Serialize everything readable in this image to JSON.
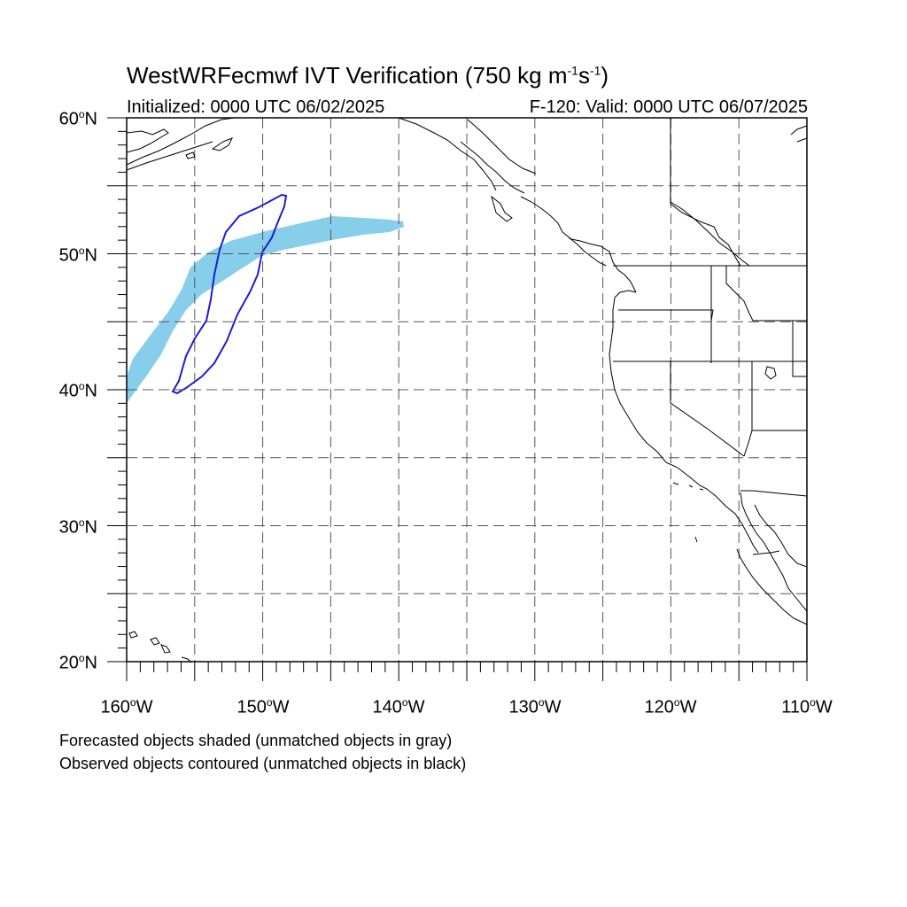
{
  "title": {
    "main": "WestWRFecmwf IVT Verification (750 kg m",
    "exp1": "-1",
    "mid": "s",
    "exp2": "-1",
    "close": ")"
  },
  "subtitle_left": "Initialized: 0000 UTC 06/02/2025",
  "subtitle_right": "F-120: Valid: 0000 UTC 06/07/2025",
  "degree_symbol": "o",
  "lat_labels": [
    {
      "num": "60",
      "hemi": "N"
    },
    {
      "num": "50",
      "hemi": "N"
    },
    {
      "num": "40",
      "hemi": "N"
    },
    {
      "num": "30",
      "hemi": "N"
    },
    {
      "num": "20",
      "hemi": "N"
    }
  ],
  "lon_labels": [
    {
      "num": "160",
      "hemi": "W"
    },
    {
      "num": "150",
      "hemi": "W"
    },
    {
      "num": "140",
      "hemi": "W"
    },
    {
      "num": "130",
      "hemi": "W"
    },
    {
      "num": "120",
      "hemi": "W"
    },
    {
      "num": "110",
      "hemi": "W"
    }
  ],
  "notes": [
    "Forecasted objects shaded (unmatched objects in gray)",
    "Observed objects contoured (unmatched objects in black)"
  ],
  "colors": {
    "forecast_fill": "#87ceeb",
    "observed_contour": "#1c1cd6",
    "grid": "#555555",
    "coastline": "#000000"
  },
  "map": {
    "lon_range": [
      -160,
      -110
    ],
    "lat_range": [
      20,
      60
    ],
    "grid_lon_step": 5,
    "grid_lat_step": 5
  }
}
